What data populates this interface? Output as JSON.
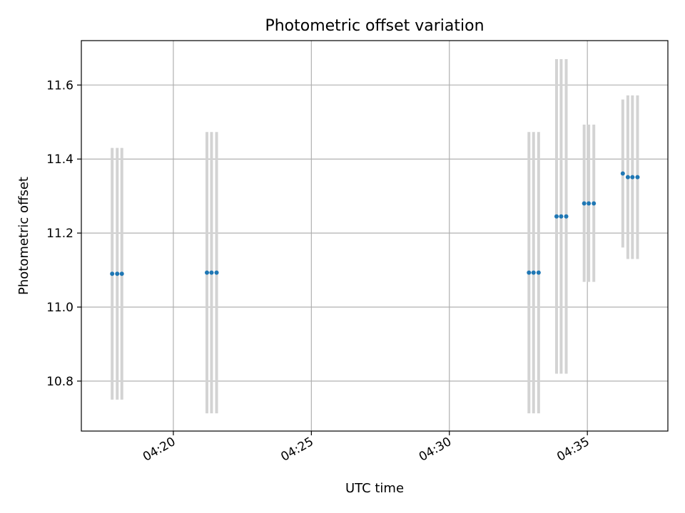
{
  "chart_data": {
    "type": "scatter",
    "title": "Photometric offset variation",
    "xlabel": "UTC time",
    "ylabel": "Photometric offset",
    "x_axis_kind": "time",
    "xlim": [
      "04:16:40",
      "04:37:55"
    ],
    "ylim": [
      10.665,
      11.72
    ],
    "grid": true,
    "x_ticks": [
      {
        "value": "04:20:00",
        "label": "04:20"
      },
      {
        "value": "04:25:00",
        "label": "04:25"
      },
      {
        "value": "04:30:00",
        "label": "04:30"
      },
      {
        "value": "04:35:00",
        "label": "04:35"
      }
    ],
    "y_ticks": [
      10.8,
      11.0,
      11.2,
      11.4,
      11.6
    ],
    "y_tick_labels": [
      "10.8",
      "11.0",
      "11.2",
      "11.4",
      "11.6"
    ],
    "colors": {
      "points": "#1f77b4",
      "error_bars": "#d3d3d3",
      "grid": "#b0b0b0"
    },
    "points": [
      {
        "x": "04:17:47",
        "y": 11.09,
        "err_low": 10.75,
        "err_high": 11.43
      },
      {
        "x": "04:17:58",
        "y": 11.09,
        "err_low": 10.75,
        "err_high": 11.43
      },
      {
        "x": "04:18:08",
        "y": 11.09,
        "err_low": 10.75,
        "err_high": 11.43
      },
      {
        "x": "04:21:13",
        "y": 11.093,
        "err_low": 10.713,
        "err_high": 11.473
      },
      {
        "x": "04:21:23",
        "y": 11.093,
        "err_low": 10.713,
        "err_high": 11.473
      },
      {
        "x": "04:21:34",
        "y": 11.093,
        "err_low": 10.713,
        "err_high": 11.473
      },
      {
        "x": "04:32:53",
        "y": 11.093,
        "err_low": 10.713,
        "err_high": 11.473
      },
      {
        "x": "04:33:03",
        "y": 11.093,
        "err_low": 10.713,
        "err_high": 11.473
      },
      {
        "x": "04:33:14",
        "y": 11.093,
        "err_low": 10.713,
        "err_high": 11.473
      },
      {
        "x": "04:33:53",
        "y": 11.245,
        "err_low": 10.82,
        "err_high": 11.67
      },
      {
        "x": "04:34:03",
        "y": 11.245,
        "err_low": 10.82,
        "err_high": 11.67
      },
      {
        "x": "04:34:14",
        "y": 11.245,
        "err_low": 10.82,
        "err_high": 11.67
      },
      {
        "x": "04:34:53",
        "y": 11.28,
        "err_low": 11.068,
        "err_high": 11.493
      },
      {
        "x": "04:35:03",
        "y": 11.28,
        "err_low": 11.068,
        "err_high": 11.493
      },
      {
        "x": "04:35:14",
        "y": 11.28,
        "err_low": 11.068,
        "err_high": 11.493
      },
      {
        "x": "04:36:17",
        "y": 11.361,
        "err_low": 11.161,
        "err_high": 11.561
      },
      {
        "x": "04:36:28",
        "y": 11.351,
        "err_low": 11.13,
        "err_high": 11.572
      },
      {
        "x": "04:36:38",
        "y": 11.351,
        "err_low": 11.13,
        "err_high": 11.572
      },
      {
        "x": "04:36:49",
        "y": 11.351,
        "err_low": 11.13,
        "err_high": 11.572
      }
    ]
  }
}
